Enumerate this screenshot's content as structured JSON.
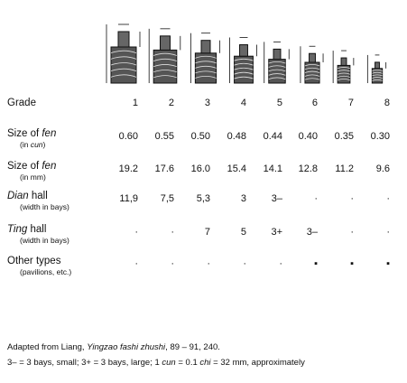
{
  "table": {
    "rows": [
      {
        "label": [
          "Grade"
        ],
        "values": [
          "1",
          "2",
          "3",
          "4",
          "5",
          "6",
          "7",
          "8"
        ]
      },
      {
        "label": [
          "Size of ",
          "fen"
        ],
        "sublabel": [
          "(in ",
          "cun",
          ")"
        ],
        "values": [
          "0.60",
          "0.55",
          "0.50",
          "0.48",
          "0.44",
          "0.40",
          "0.35",
          "0.30"
        ]
      },
      {
        "label": [
          "Size of ",
          "fen"
        ],
        "sublabel": [
          "(in mm)"
        ],
        "values": [
          "19.2",
          "17.6",
          "16.0",
          "15.4",
          "14.1",
          "12.8",
          "11.2",
          "9.6"
        ]
      },
      {
        "label": [
          "",
          "Dian",
          " hall"
        ],
        "sublabel": [
          "(width in bays)"
        ],
        "values": [
          "11,9",
          "7,5",
          "5,3",
          "3",
          "3–",
          "·",
          "·",
          "·"
        ]
      },
      {
        "label": [
          "",
          "Ting",
          " hall"
        ],
        "sublabel": [
          "(width in bays)"
        ],
        "values": [
          "·",
          "·",
          "7",
          "5",
          "3+",
          "3–",
          "·",
          "·"
        ]
      },
      {
        "label": [
          "Other types"
        ],
        "sublabel": [
          "(pavilions, etc.)"
        ],
        "values": [
          "·",
          "·",
          "·",
          "·",
          "·",
          "▪",
          "▪",
          "▪"
        ]
      }
    ]
  },
  "footnote": [
    [
      "Adapted from Liang, ",
      "Yingzao fashi zhushi",
      ", 89 – 91, 240."
    ],
    [
      "3– = 3 bays, small; 3+ = 3 bays, large; 1 ",
      "cun",
      " = 0.1 ",
      "chi",
      " = 32 mm, approximately"
    ]
  ]
}
